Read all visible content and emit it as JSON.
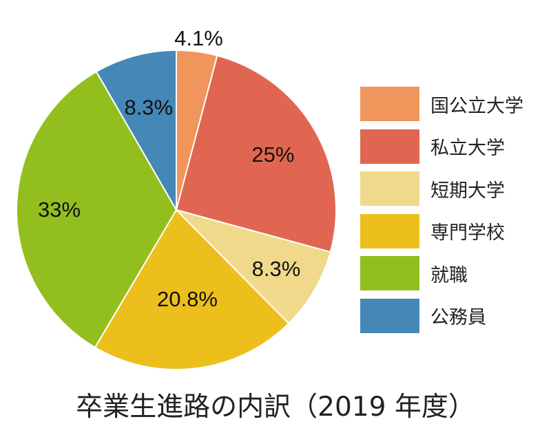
{
  "chart_data": {
    "type": "pie",
    "title": "卒業生進路の内訳（2019 年度）",
    "slices": [
      {
        "label": "国公立大学",
        "value": 4.1,
        "display": "4.1%",
        "color": "#F0955B"
      },
      {
        "label": "私立大学",
        "value": 25,
        "display": "25%",
        "color": "#E06652"
      },
      {
        "label": "短期大学",
        "value": 8.3,
        "display": "8.3%",
        "color": "#F0D98A"
      },
      {
        "label": "専門学校",
        "value": 20.8,
        "display": "20.8%",
        "color": "#ECBF1C"
      },
      {
        "label": "就職",
        "value": 33,
        "display": "33%",
        "color": "#92BF1E"
      },
      {
        "label": "公務員",
        "value": 8.3,
        "display": "8.3%",
        "color": "#4587B7"
      }
    ],
    "legend_position": "right"
  }
}
